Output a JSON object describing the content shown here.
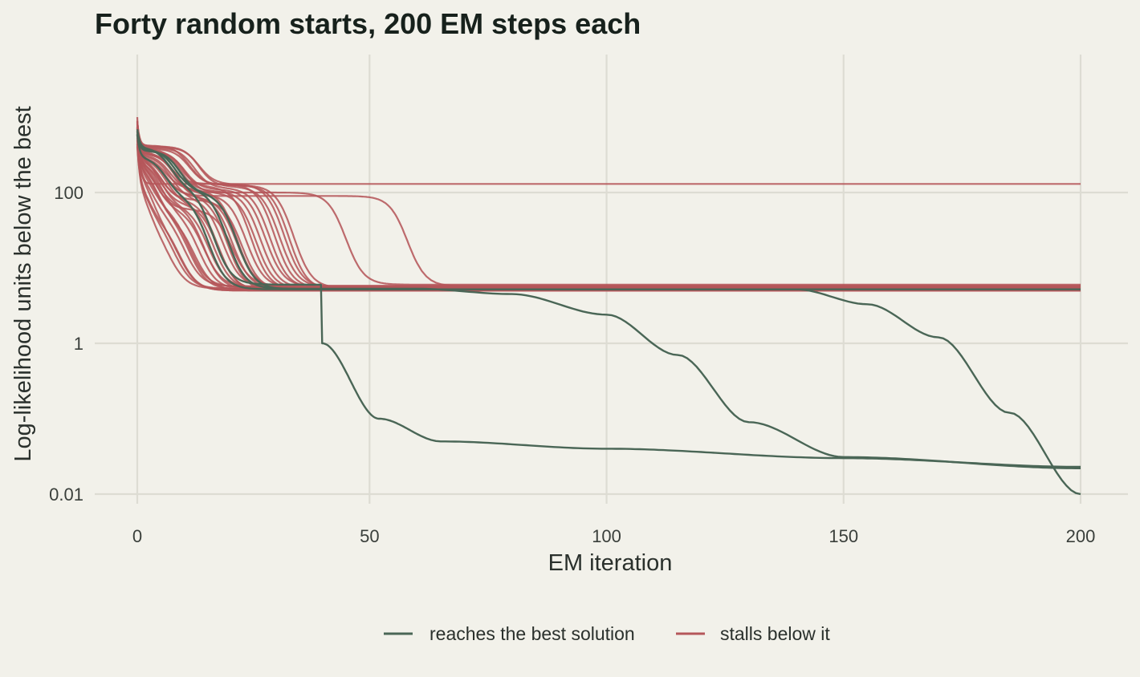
{
  "chart_data": {
    "type": "line",
    "title": "Forty random starts, 200 EM steps each",
    "xlabel": "EM iteration",
    "ylabel": "Log-likelihood units below the best",
    "xlim": [
      1,
      200
    ],
    "ylim": [
      0.01,
      3000
    ],
    "y_scale": "log10",
    "x_ticks": [
      0,
      50,
      100,
      150,
      200
    ],
    "y_ticks": [
      0.01,
      1,
      100
    ],
    "y_tick_labels": [
      "0.01",
      "1",
      "100"
    ],
    "grid": true,
    "legend_position": "bottom",
    "colors": {
      "reaches": "#4a6656",
      "stalls": "#b5575a"
    },
    "legend": [
      {
        "label": "reaches the best solution",
        "color": "#4a6656"
      },
      {
        "label": "stalls below it",
        "color": "#b5575a"
      }
    ],
    "series": [
      {
        "group": "stalls",
        "start": 1000,
        "plateau1": 130,
        "drop1": 5,
        "plateau2": 130,
        "drop2": 200,
        "final": 130
      },
      {
        "group": "stalls",
        "start": 700,
        "plateau1": 400,
        "drop1": 14,
        "plateau2": 130,
        "drop2": 30,
        "final": 5.4
      },
      {
        "group": "stalls",
        "start": 650,
        "plateau1": 380,
        "drop1": 10,
        "plateau2": 120,
        "drop2": 25,
        "final": 5.2
      },
      {
        "group": "stalls",
        "start": 900,
        "plateau1": 300,
        "drop1": 6,
        "plateau2": 80,
        "drop2": 18,
        "final": 5.0
      },
      {
        "group": "stalls",
        "start": 800,
        "plateau1": 250,
        "drop1": 4,
        "plateau2": 60,
        "drop2": 12,
        "final": 5.6
      },
      {
        "group": "stalls",
        "start": 600,
        "plateau1": 200,
        "drop1": 3,
        "plateau2": 40,
        "drop2": 9,
        "final": 5.3
      },
      {
        "group": "stalls",
        "start": 750,
        "plateau1": 350,
        "drop1": 8,
        "plateau2": 130,
        "drop2": 32,
        "final": 5.5
      },
      {
        "group": "stalls",
        "start": 700,
        "plateau1": 420,
        "drop1": 12,
        "plateau2": 125,
        "drop2": 33,
        "final": 5.1
      },
      {
        "group": "stalls",
        "start": 650,
        "plateau1": 300,
        "drop1": 7,
        "plateau2": 110,
        "drop2": 22,
        "final": 5.4
      },
      {
        "group": "stalls",
        "start": 800,
        "plateau1": 280,
        "drop1": 5,
        "plateau2": 70,
        "drop2": 15,
        "final": 5.2
      },
      {
        "group": "stalls",
        "start": 600,
        "plateau1": 220,
        "drop1": 4,
        "plateau2": 50,
        "drop2": 11,
        "final": 5.7
      },
      {
        "group": "stalls",
        "start": 900,
        "plateau1": 330,
        "drop1": 9,
        "plateau2": 90,
        "drop2": 20,
        "final": 5.0
      },
      {
        "group": "stalls",
        "start": 700,
        "plateau1": 360,
        "drop1": 11,
        "plateau2": 100,
        "drop2": 26,
        "final": 5.3
      },
      {
        "group": "stalls",
        "start": 750,
        "plateau1": 300,
        "drop1": 6,
        "plateau2": 65,
        "drop2": 16,
        "final": 5.5
      },
      {
        "group": "stalls",
        "start": 650,
        "plateau1": 240,
        "drop1": 5,
        "plateau2": 45,
        "drop2": 13,
        "final": 5.1
      },
      {
        "group": "stalls",
        "start": 850,
        "plateau1": 310,
        "drop1": 8,
        "plateau2": 85,
        "drop2": 19,
        "final": 5.6
      },
      {
        "group": "stalls",
        "start": 700,
        "plateau1": 270,
        "drop1": 6,
        "plateau2": 55,
        "drop2": 14,
        "final": 5.2
      },
      {
        "group": "stalls",
        "start": 600,
        "plateau1": 390,
        "drop1": 13,
        "plateau2": 115,
        "drop2": 29,
        "final": 5.4
      },
      {
        "group": "stalls",
        "start": 750,
        "plateau1": 290,
        "drop1": 7,
        "plateau2": 75,
        "drop2": 17,
        "final": 5.3
      },
      {
        "group": "stalls",
        "start": 800,
        "plateau1": 260,
        "drop1": 5,
        "plateau2": 60,
        "drop2": 21,
        "final": 5.8
      },
      {
        "group": "stalls",
        "start": 650,
        "plateau1": 230,
        "drop1": 4,
        "plateau2": 35,
        "drop2": 10,
        "final": 5.0
      },
      {
        "group": "stalls",
        "start": 900,
        "plateau1": 340,
        "drop1": 9,
        "plateau2": 95,
        "drop2": 24,
        "final": 5.5
      },
      {
        "group": "stalls",
        "start": 700,
        "plateau1": 320,
        "drop1": 8,
        "plateau2": 100,
        "drop2": 45,
        "final": 6.0
      },
      {
        "group": "stalls",
        "start": 750,
        "plateau1": 300,
        "drop1": 7,
        "plateau2": 90,
        "drop2": 58,
        "final": 5.7
      },
      {
        "group": "stalls",
        "start": 650,
        "plateau1": 280,
        "drop1": 6,
        "plateau2": 80,
        "drop2": 23,
        "final": 5.1
      },
      {
        "group": "stalls",
        "start": 800,
        "plateau1": 370,
        "drop1": 10,
        "plateau2": 105,
        "drop2": 27,
        "final": 5.4
      },
      {
        "group": "stalls",
        "start": 600,
        "plateau1": 250,
        "drop1": 5,
        "plateau2": 50,
        "drop2": 12,
        "final": 5.2
      },
      {
        "group": "stalls",
        "start": 850,
        "plateau1": 410,
        "drop1": 14,
        "plateau2": 120,
        "drop2": 31,
        "final": 5.6
      },
      {
        "group": "stalls",
        "start": 700,
        "plateau1": 200,
        "drop1": 3,
        "plateau2": 30,
        "drop2": 8,
        "final": 5.3
      },
      {
        "group": "stalls",
        "start": 750,
        "plateau1": 330,
        "drop1": 9,
        "plateau2": 85,
        "drop2": 22,
        "final": 5.5
      },
      {
        "group": "stalls",
        "start": 650,
        "plateau1": 210,
        "drop1": 3,
        "plateau2": 40,
        "drop2": 10,
        "final": 5.0
      },
      {
        "group": "stalls",
        "start": 800,
        "plateau1": 350,
        "drop1": 11,
        "plateau2": 110,
        "drop2": 28,
        "final": 5.7
      },
      {
        "group": "stalls",
        "start": 700,
        "plateau1": 380,
        "drop1": 12,
        "plateau2": 125,
        "drop2": 34,
        "final": 5.4
      },
      {
        "group": "stalls",
        "start": 600,
        "plateau1": 260,
        "drop1": 6,
        "plateau2": 70,
        "drop2": 18,
        "final": 5.1
      },
      {
        "group": "stalls",
        "start": 900,
        "plateau1": 300,
        "drop1": 7,
        "plateau2": 90,
        "drop2": 21,
        "final": 5.3
      },
      {
        "group": "stalls",
        "start": 750,
        "plateau1": 270,
        "drop1": 5,
        "plateau2": 60,
        "drop2": 15,
        "final": 5.6
      },
      {
        "group": "reaches",
        "start": 700,
        "plateau1": 400,
        "drop1": 8,
        "plateau2": 120,
        "drop2": 17,
        "final": 6.0,
        "tail": [
          [
            40,
            1.0
          ],
          [
            52,
            0.1
          ],
          [
            65,
            0.05
          ],
          [
            100,
            0.04
          ],
          [
            150,
            0.03
          ],
          [
            200,
            0.023
          ]
        ]
      },
      {
        "group": "reaches",
        "start": 650,
        "plateau1": 380,
        "drop1": 9,
        "plateau2": 110,
        "drop2": 20,
        "final": 5.3,
        "tail": [
          [
            60,
            5.3
          ],
          [
            80,
            4.5
          ],
          [
            100,
            2.4
          ],
          [
            115,
            0.7
          ],
          [
            130,
            0.09
          ],
          [
            150,
            0.031
          ],
          [
            200,
            0.022
          ]
        ]
      },
      {
        "group": "reaches",
        "start": 600,
        "plateau1": 360,
        "drop1": 10,
        "plateau2": 100,
        "drop2": 22,
        "final": 5.2,
        "tail": [
          [
            140,
            5.2
          ],
          [
            155,
            3.3
          ],
          [
            170,
            1.2
          ],
          [
            185,
            0.12
          ],
          [
            200,
            0.01
          ]
        ]
      },
      {
        "group": "reaches",
        "start": 600,
        "plateau1": 300,
        "drop1": 7,
        "plateau2": 90,
        "drop2": 16,
        "final": 5.2
      }
    ]
  }
}
